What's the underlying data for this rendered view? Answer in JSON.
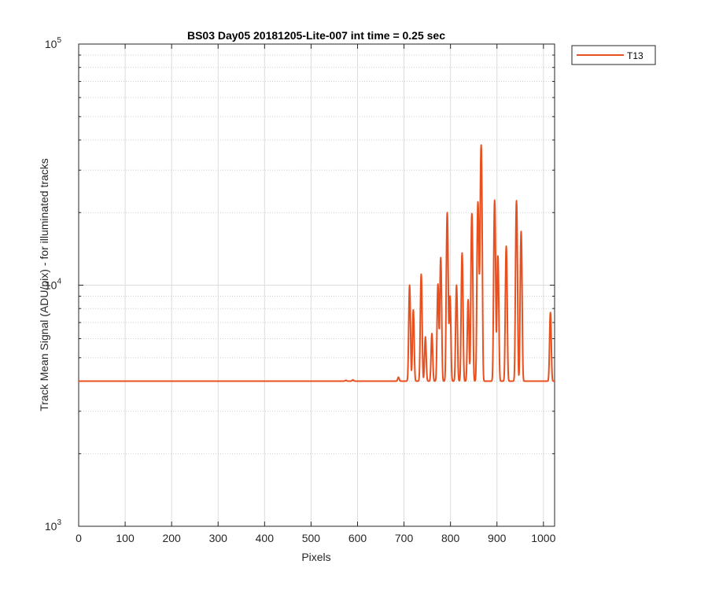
{
  "chart_data": {
    "type": "line",
    "title": "BS03 Day05 20181205-Lite-007 int time = 0.25 sec",
    "xlabel": "Pixels",
    "ylabel": "Track Mean Signal (ADU/pix) - for illuminated tracks",
    "xlim": [
      0,
      1024
    ],
    "ylim": [
      1000,
      100000
    ],
    "yscale": "log",
    "grid": true,
    "minor_grid": true,
    "x_ticks": [
      0,
      100,
      200,
      300,
      400,
      500,
      600,
      700,
      800,
      900,
      1000
    ],
    "y_ticks": [
      {
        "value": 1000,
        "base": "10",
        "exponent": "3"
      },
      {
        "value": 10000,
        "base": "10",
        "exponent": "4"
      },
      {
        "value": 100000,
        "base": "10",
        "exponent": "5"
      }
    ],
    "legend_position": "outside-top-right",
    "baseline": 4000,
    "series": [
      {
        "name": "T13",
        "color": "#e8501f",
        "baseline": 4000,
        "peaks": [
          {
            "x": 575,
            "y": 4030
          },
          {
            "x": 590,
            "y": 4050
          },
          {
            "x": 688,
            "y": 4150
          },
          {
            "x": 712,
            "y": 10000
          },
          {
            "x": 720,
            "y": 7900
          },
          {
            "x": 737,
            "y": 11100
          },
          {
            "x": 746,
            "y": 6100
          },
          {
            "x": 760,
            "y": 6300
          },
          {
            "x": 773,
            "y": 10100
          },
          {
            "x": 779,
            "y": 13000
          },
          {
            "x": 793,
            "y": 20000
          },
          {
            "x": 799,
            "y": 9000
          },
          {
            "x": 813,
            "y": 10000
          },
          {
            "x": 825,
            "y": 13600
          },
          {
            "x": 838,
            "y": 8700
          },
          {
            "x": 846,
            "y": 19800
          },
          {
            "x": 859,
            "y": 21700
          },
          {
            "x": 862,
            "y": 6600
          },
          {
            "x": 866,
            "y": 38000
          },
          {
            "x": 895,
            "y": 22500
          },
          {
            "x": 902,
            "y": 13200
          },
          {
            "x": 920,
            "y": 14500
          },
          {
            "x": 942,
            "y": 22400
          },
          {
            "x": 952,
            "y": 16700
          },
          {
            "x": 1015,
            "y": 7700
          }
        ]
      }
    ]
  }
}
